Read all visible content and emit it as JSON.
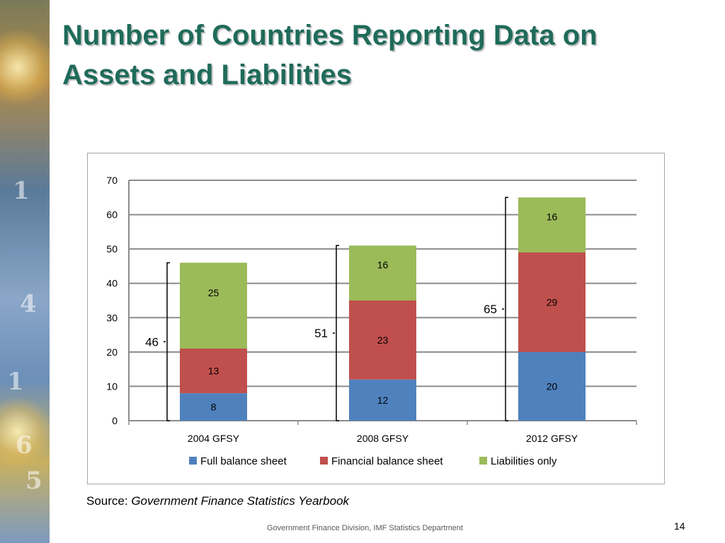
{
  "slide": {
    "title_line1": "Number of Countries Reporting Data on",
    "title_line2": "Assets and Liabilities",
    "source_prefix": "Source: ",
    "source_title": "Government Finance Statistics Yearbook",
    "footer": "Government Finance Division, IMF Statistics Department",
    "page_number": "14",
    "decor_numbers": [
      "1",
      "4",
      "1",
      "6",
      "5"
    ]
  },
  "chart_data": {
    "type": "bar",
    "stacked": true,
    "categories": [
      "2004 GFSY",
      "2008 GFSY",
      "2012 GFSY"
    ],
    "series": [
      {
        "name": "Full balance sheet",
        "color": "#4f81bd",
        "values": [
          8,
          12,
          20
        ]
      },
      {
        "name": "Financial balance sheet",
        "color": "#c0504d",
        "values": [
          13,
          23,
          29
        ]
      },
      {
        "name": "Liabilities only",
        "color": "#9bbb59",
        "values": [
          25,
          16,
          16
        ]
      }
    ],
    "totals": [
      46,
      51,
      65
    ],
    "ylim": [
      0,
      70
    ],
    "yticks": [
      0,
      10,
      20,
      30,
      40,
      50,
      60,
      70
    ],
    "grid": true,
    "legend_position": "bottom",
    "title": "",
    "xlabel": "",
    "ylabel": ""
  }
}
